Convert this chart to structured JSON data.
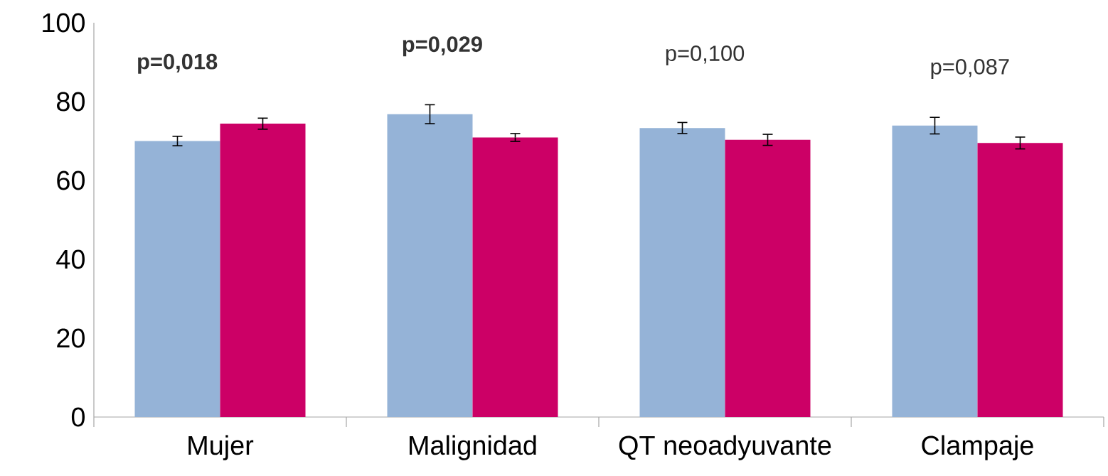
{
  "chart_data": {
    "type": "bar",
    "categories": [
      "Mujer",
      "Malignidad",
      "QT neoadyuvante",
      "Clampaje"
    ],
    "series": [
      {
        "color": "#95b3d7",
        "values": [
          70.0,
          76.8,
          73.3,
          73.9
        ],
        "errors": [
          1.2,
          2.4,
          1.4,
          2.1
        ]
      },
      {
        "color": "#cc0066",
        "values": [
          74.4,
          70.9,
          70.3,
          69.5
        ],
        "errors": [
          1.4,
          1.0,
          1.4,
          1.5
        ]
      }
    ],
    "ylim": [
      0,
      100
    ],
    "yticks": [
      0,
      20,
      40,
      60,
      80,
      100
    ],
    "annotations": [
      "**p=0,018**",
      "**p=0,029**",
      "p=0,100",
      "p=0,087"
    ],
    "grid": false
  }
}
